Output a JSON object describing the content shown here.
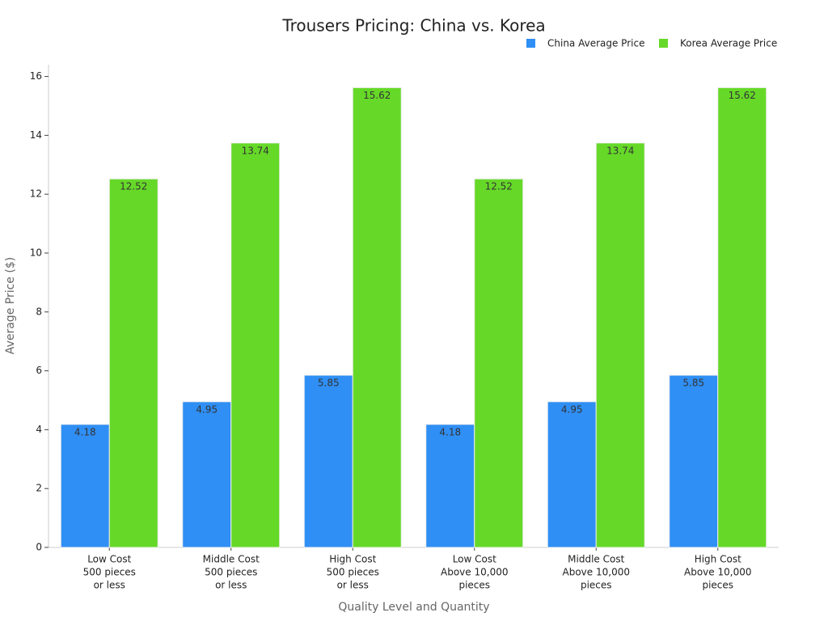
{
  "chart_data": {
    "type": "bar",
    "title": "Trousers Pricing: China vs. Korea",
    "x_label": "Quality Level and Quantity",
    "y_label": "Average Price ($)",
    "categories": [
      [
        "Low Cost",
        "500 pieces",
        "or less"
      ],
      [
        "Middle Cost",
        "500 pieces",
        "or less"
      ],
      [
        "High Cost",
        "500 pieces",
        "or less"
      ],
      [
        "Low Cost",
        "Above 10,000",
        "pieces"
      ],
      [
        "Middle Cost",
        "Above 10,000",
        "pieces"
      ],
      [
        "High Cost",
        "Above 10,000",
        "pieces"
      ]
    ],
    "series": [
      {
        "name": "China Average Price",
        "color": "#2f8ff5",
        "values": [
          4.18,
          4.95,
          5.85,
          4.18,
          4.95,
          5.85
        ]
      },
      {
        "name": "Korea Average Price",
        "color": "#66d928",
        "values": [
          12.52,
          13.74,
          15.62,
          12.52,
          13.74,
          15.62
        ]
      }
    ],
    "ylim": [
      0,
      16.4
    ],
    "yticks": [
      0,
      2,
      4,
      6,
      8,
      10,
      12,
      14,
      16
    ],
    "grid": false,
    "legend": "top-right"
  }
}
